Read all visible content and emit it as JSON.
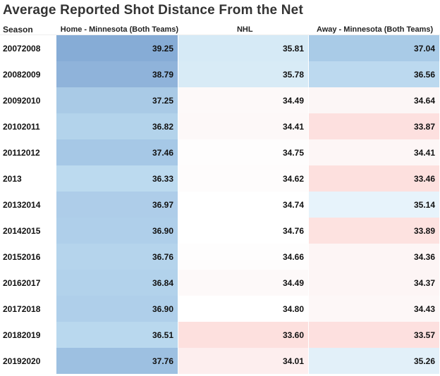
{
  "title": "Average Reported Shot Distance From the Net",
  "headers": {
    "season": "Season",
    "home": "Home - Minnesota (Both Teams)",
    "nhl": "NHL",
    "away": "Away - Minnesota (Both Teams)"
  },
  "rows": [
    {
      "season": "20072008",
      "home": "39.25",
      "nhl": "35.81",
      "away": "37.04"
    },
    {
      "season": "20082009",
      "home": "38.79",
      "nhl": "35.78",
      "away": "36.56"
    },
    {
      "season": "20092010",
      "home": "37.25",
      "nhl": "34.49",
      "away": "34.64"
    },
    {
      "season": "20102011",
      "home": "36.82",
      "nhl": "34.41",
      "away": "33.87"
    },
    {
      "season": "20112012",
      "home": "37.46",
      "nhl": "34.75",
      "away": "34.41"
    },
    {
      "season": "2013",
      "home": "36.33",
      "nhl": "34.62",
      "away": "33.46"
    },
    {
      "season": "20132014",
      "home": "36.97",
      "nhl": "34.74",
      "away": "35.14"
    },
    {
      "season": "20142015",
      "home": "36.90",
      "nhl": "34.76",
      "away": "33.89"
    },
    {
      "season": "20152016",
      "home": "36.76",
      "nhl": "34.66",
      "away": "34.36"
    },
    {
      "season": "20162017",
      "home": "36.84",
      "nhl": "34.49",
      "away": "34.37"
    },
    {
      "season": "20172018",
      "home": "36.90",
      "nhl": "34.80",
      "away": "34.43"
    },
    {
      "season": "20182019",
      "home": "36.51",
      "nhl": "33.60",
      "away": "33.57"
    },
    {
      "season": "20192020",
      "home": "37.76",
      "nhl": "34.01",
      "away": "35.26"
    }
  ],
  "colors": {
    "home": [
      "#86acd6",
      "#8fb3da",
      "#a9cae6",
      "#b3d3eb",
      "#a6c8e6",
      "#bcdaef",
      "#aecde9",
      "#afcfea",
      "#b5d4ec",
      "#b2d2eb",
      "#afcfea",
      "#b9d8ee",
      "#9dc0e1"
    ],
    "nhl": [
      "#d6eaf6",
      "#d8ebf6",
      "#fdf9f9",
      "#fdf8f8",
      "#fefdfd",
      "#fefcfc",
      "#ffffff",
      "#ffffff",
      "#fefdfd",
      "#fdf9f9",
      "#ffffff",
      "#fde0de",
      "#fdeeee"
    ],
    "away": [
      "#a9cbe7",
      "#bcd9ef",
      "#fcf6f6",
      "#fde0df",
      "#fdf6f6",
      "#fde0de",
      "#e7f3fb",
      "#fde2e0",
      "#fdf5f5",
      "#fdf5f5",
      "#fdf7f7",
      "#fde0df",
      "#e2f0f9"
    ]
  }
}
